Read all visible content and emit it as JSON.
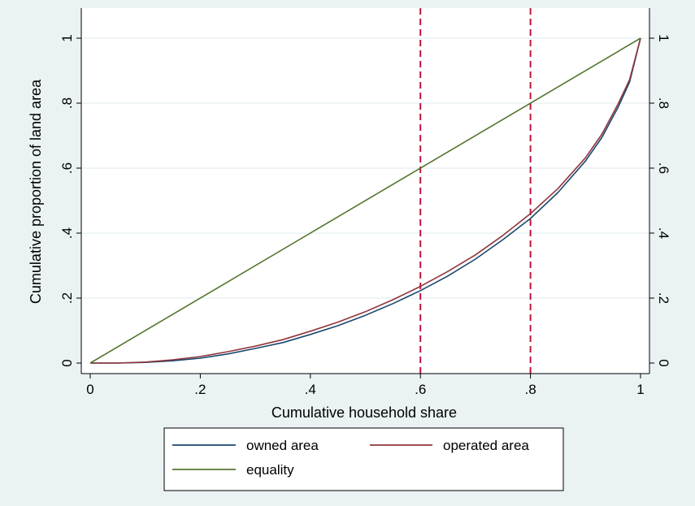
{
  "chart_data": {
    "type": "line",
    "xlabel": "Cumulative household share",
    "ylabel": "Cumulative proportion of land area",
    "xlim": [
      0,
      1
    ],
    "ylim": [
      0,
      1
    ],
    "x_ticks": [
      {
        "value": 0,
        "label": "0"
      },
      {
        "value": 0.2,
        "label": ".2"
      },
      {
        "value": 0.4,
        "label": ".4"
      },
      {
        "value": 0.6,
        "label": ".6"
      },
      {
        "value": 0.8,
        "label": ".8"
      },
      {
        "value": 1,
        "label": "1"
      }
    ],
    "y_ticks": [
      {
        "value": 0,
        "label": "0"
      },
      {
        "value": 0.2,
        "label": ".2"
      },
      {
        "value": 0.4,
        "label": ".4"
      },
      {
        "value": 0.6,
        "label": ".6"
      },
      {
        "value": 0.8,
        "label": ".8"
      },
      {
        "value": 1,
        "label": "1"
      }
    ],
    "grid": "horizontal",
    "reference_lines": [
      {
        "axis": "x",
        "value": 0.6,
        "color": "#c0143c",
        "style": "dashed"
      },
      {
        "axis": "x",
        "value": 0.8,
        "color": "#c0143c",
        "style": "dashed"
      }
    ],
    "series": [
      {
        "name": "owned area",
        "color": "#1a476f",
        "x": [
          0,
          0.05,
          0.1,
          0.15,
          0.2,
          0.25,
          0.3,
          0.35,
          0.4,
          0.45,
          0.5,
          0.55,
          0.6,
          0.65,
          0.7,
          0.75,
          0.8,
          0.85,
          0.9,
          0.93,
          0.96,
          0.98,
          1
        ],
        "y": [
          0,
          0,
          0.002,
          0.007,
          0.015,
          0.028,
          0.045,
          0.063,
          0.088,
          0.115,
          0.147,
          0.183,
          0.223,
          0.268,
          0.32,
          0.38,
          0.445,
          0.525,
          0.622,
          0.695,
          0.79,
          0.865,
          1
        ]
      },
      {
        "name": "operated area",
        "color": "#90353b",
        "x": [
          0,
          0.05,
          0.1,
          0.15,
          0.2,
          0.25,
          0.3,
          0.35,
          0.4,
          0.45,
          0.5,
          0.55,
          0.6,
          0.65,
          0.7,
          0.75,
          0.8,
          0.85,
          0.9,
          0.93,
          0.96,
          0.98,
          1
        ],
        "y": [
          0,
          0,
          0.003,
          0.01,
          0.02,
          0.035,
          0.052,
          0.072,
          0.098,
          0.126,
          0.158,
          0.195,
          0.236,
          0.282,
          0.333,
          0.393,
          0.46,
          0.537,
          0.632,
          0.705,
          0.8,
          0.872,
          1
        ]
      },
      {
        "name": "equality",
        "color": "#55752f",
        "x": [
          0,
          1
        ],
        "y": [
          0,
          1
        ]
      }
    ],
    "legend": {
      "position": "bottom",
      "entries": [
        "owned area",
        "operated area",
        "equality"
      ]
    },
    "colors": {
      "background": "#eaf2f3",
      "plot_background": "#ffffff",
      "grid": "#eaf2f3"
    }
  }
}
